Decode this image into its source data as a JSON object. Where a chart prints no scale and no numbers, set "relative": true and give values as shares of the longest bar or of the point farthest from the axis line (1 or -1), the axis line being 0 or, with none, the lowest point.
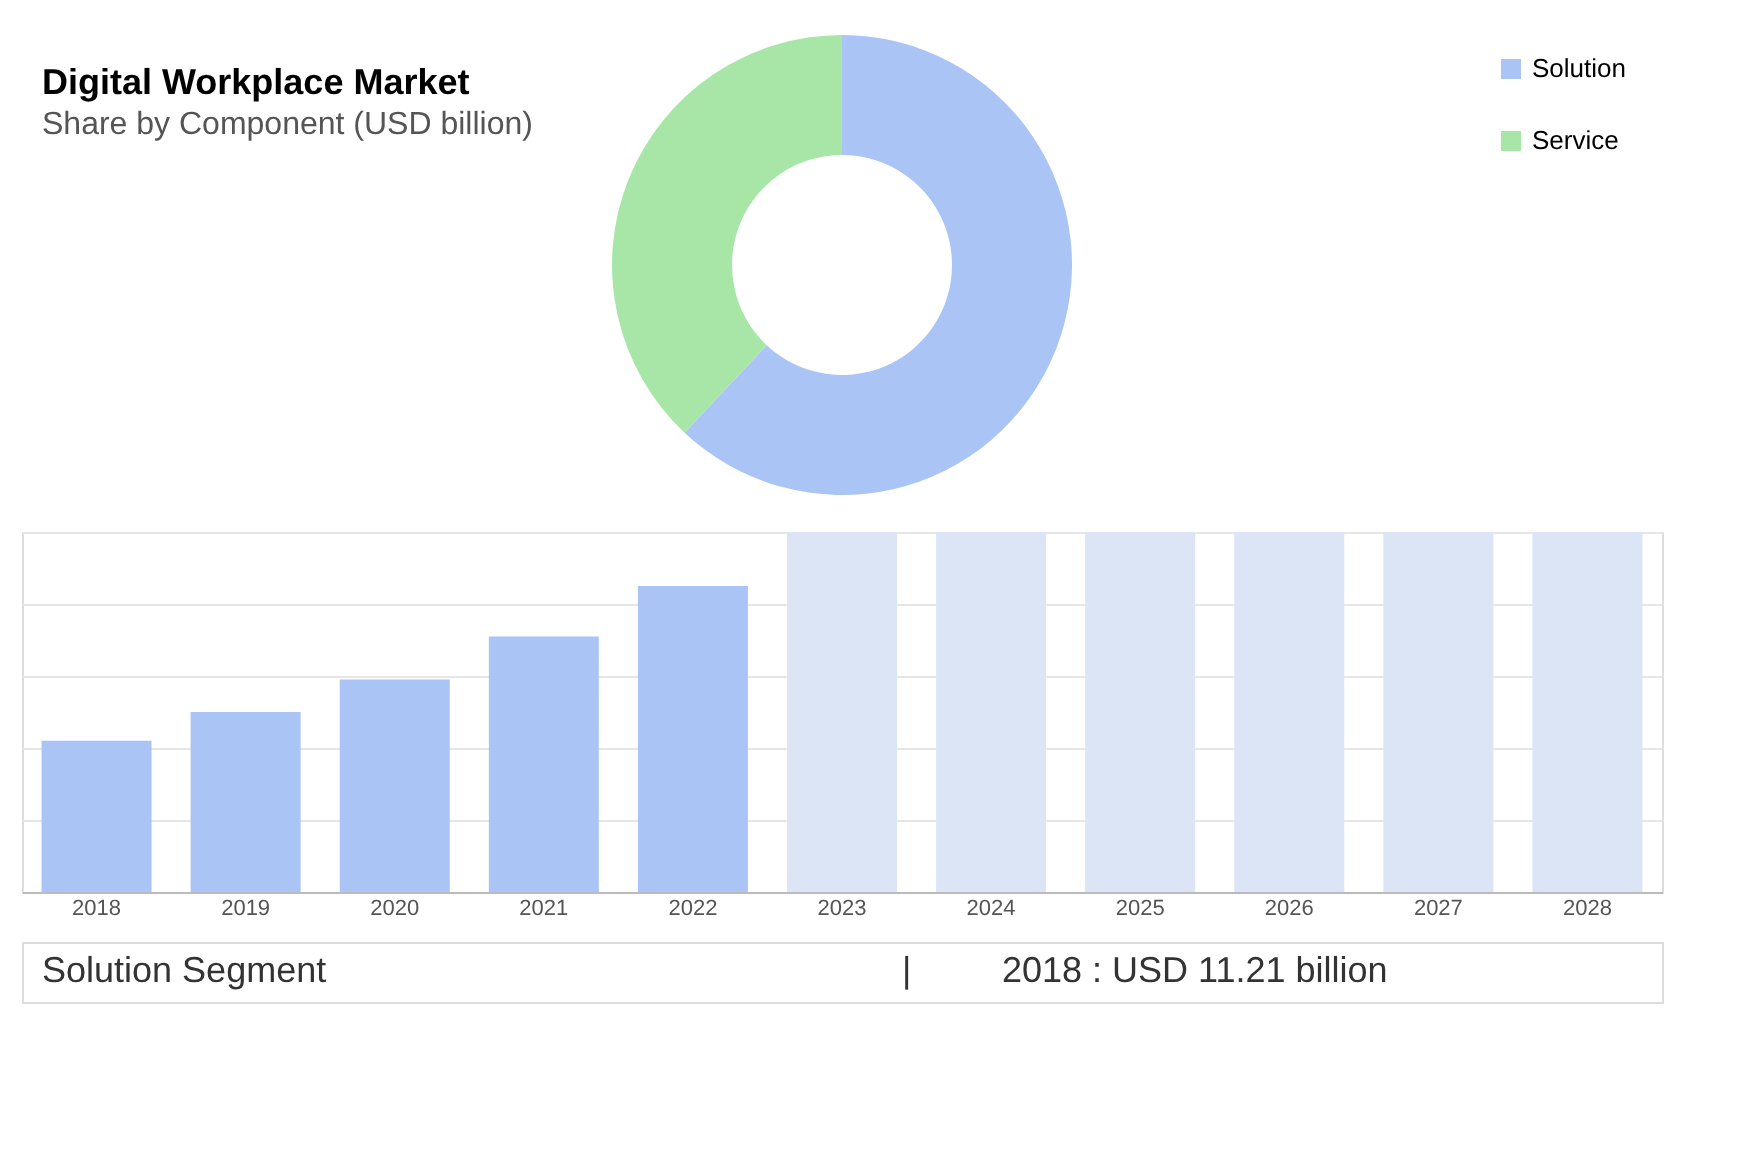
{
  "chart_data": [
    {
      "type": "donut",
      "title": "Digital Workplace Market",
      "subtitle": "Share by Component (USD billion)",
      "categories": [
        "Solution",
        "Service"
      ],
      "values": [
        62,
        38
      ],
      "colors": [
        "#a9c4f5",
        "#a8e6a8"
      ],
      "legend": "top right"
    },
    {
      "type": "bar",
      "relative": true,
      "categories": [
        "2018",
        "2019",
        "2020",
        "2021",
        "2022",
        "2023",
        "2024",
        "2025",
        "2026",
        "2027",
        "2028"
      ],
      "series": [
        {
          "color": "#a9c4f5",
          "values": [
            0.42,
            0.5,
            0.59,
            0.71,
            0.85,
            null,
            null,
            null,
            null,
            null,
            null
          ]
        },
        {
          "color": "#dbe5f6",
          "values": [
            null,
            null,
            null,
            null,
            null,
            1,
            1,
            1,
            1,
            1,
            1
          ]
        }
      ],
      "grid": "y",
      "legend": false,
      "annotations": [
        "Solution Segment",
        "|",
        "2018 : USD 11.21 billion"
      ]
    }
  ]
}
